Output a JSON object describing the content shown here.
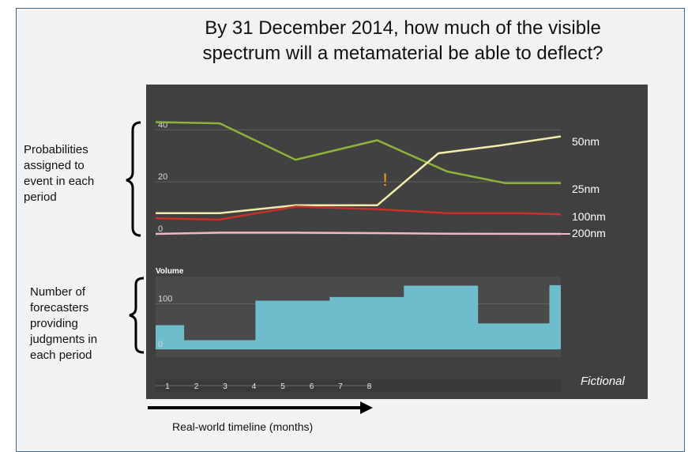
{
  "title_line1": "By 31 December 2014, how much of the visible",
  "title_line2": "spectrum will a metamaterial be able to deflect?",
  "left_label_top": [
    "Probabilities",
    "assigned to",
    "event in each",
    "period"
  ],
  "left_label_bottom": [
    "Number of",
    "forecasters",
    "providing",
    "judgments in",
    "each period"
  ],
  "bottom_label": "Real-world timeline (months)",
  "watermark": "Fictional",
  "colors": {
    "panel": "#404040",
    "green": "#8db33a",
    "yellow": "#f2ecac",
    "red": "#c8302a",
    "pink": "#f1b8c2",
    "volume": "#6fbdcc",
    "alert": "#f2a51a"
  },
  "chart_data": [
    {
      "type": "line",
      "x": [
        0,
        0.86,
        1.86,
        2.86,
        3.86,
        4.86,
        5.86,
        6.86,
        7.86,
        8.86,
        9.86,
        10.86,
        11.86,
        12.86,
        13.86
      ],
      "ylim": [
        0,
        55
      ],
      "yticks": [
        "0",
        "20",
        "40"
      ],
      "ytick_values": [
        0,
        20,
        40
      ],
      "series": [
        {
          "name": "50nm",
          "color": "green",
          "points": [
            [
              0,
              43
            ],
            [
              2.2,
              42.5
            ],
            [
              4.8,
              28.5
            ],
            [
              7.6,
              36
            ],
            [
              10,
              24
            ],
            [
              12,
              19.5
            ],
            [
              13.9,
              19.5
            ]
          ]
        },
        {
          "name": "25nm",
          "color": "yellow",
          "points": [
            [
              0,
              8
            ],
            [
              2.2,
              8
            ],
            [
              4.8,
              11
            ],
            [
              7.6,
              11
            ],
            [
              9.7,
              31
            ],
            [
              11.8,
              34
            ],
            [
              13.9,
              37.5
            ]
          ]
        },
        {
          "name": "100nm",
          "color": "red",
          "points": [
            [
              0,
              6
            ],
            [
              2.2,
              5.5
            ],
            [
              4.8,
              10.5
            ],
            [
              7.6,
              9.5
            ],
            [
              10,
              8
            ],
            [
              12.5,
              8
            ],
            [
              13.9,
              7.5
            ]
          ]
        },
        {
          "name": "200nm",
          "color": "pink",
          "points": [
            [
              0,
              0
            ],
            [
              2.2,
              0.5
            ],
            [
              4.8,
              0.5
            ],
            [
              7.6,
              0.3
            ],
            [
              10,
              0.1
            ],
            [
              13.9,
              0
            ]
          ]
        }
      ],
      "annotation": {
        "text": "!",
        "x": 7.9,
        "y": 21
      }
    },
    {
      "type": "area",
      "title": "Volume",
      "ylim": [
        0,
        160
      ],
      "yticks": [
        "0",
        "100"
      ],
      "ytick_values": [
        0,
        100
      ],
      "steps": [
        [
          0,
          53
        ],
        [
          1,
          20
        ],
        [
          3.5,
          107
        ],
        [
          6.1,
          115
        ],
        [
          8.7,
          140
        ],
        [
          11.3,
          57
        ],
        [
          13.8,
          141
        ],
        [
          14.2,
          141
        ]
      ],
      "x_end": 14.2,
      "xticks": [
        "1",
        "2",
        "3",
        "4",
        "5",
        "6",
        "7",
        "8"
      ]
    }
  ]
}
